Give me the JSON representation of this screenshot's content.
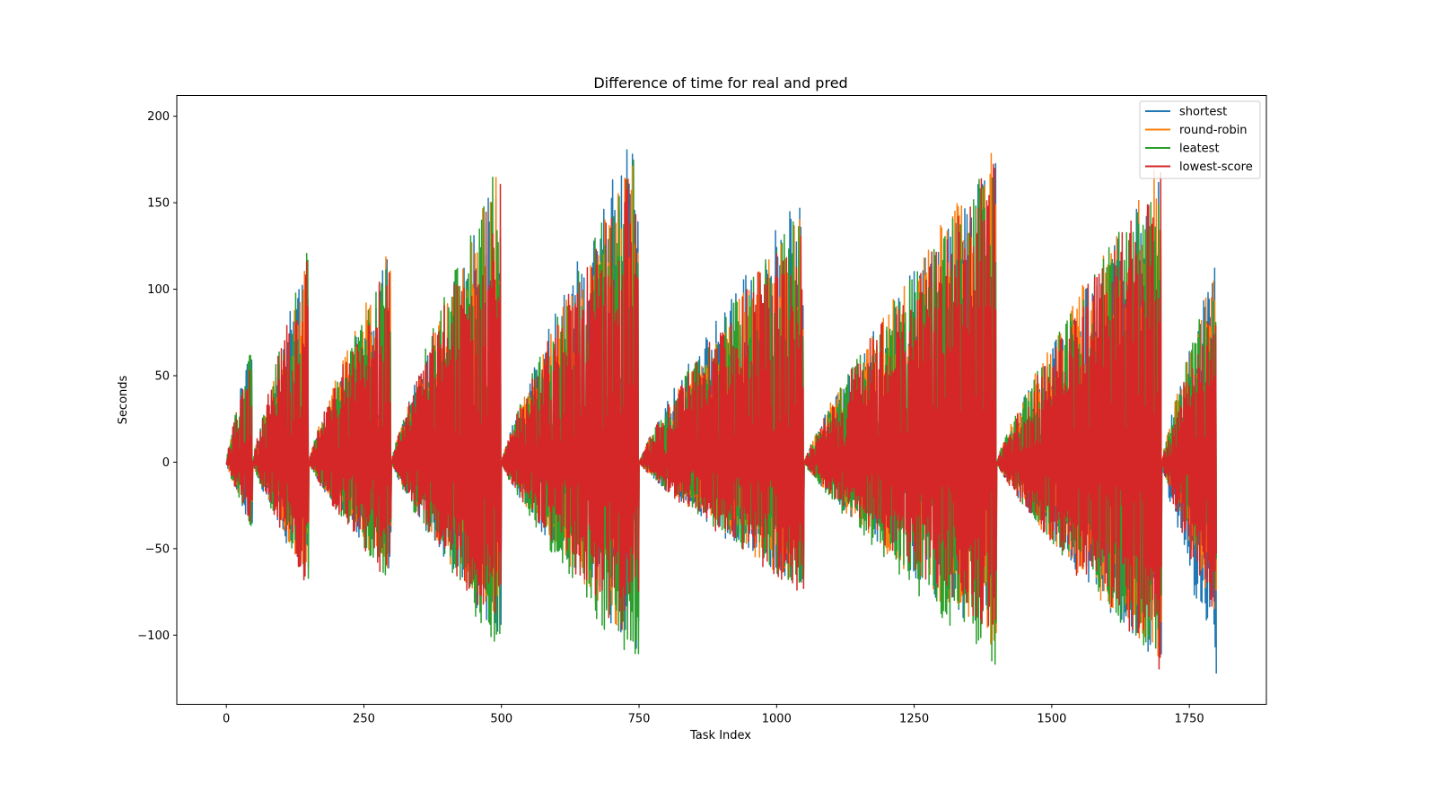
{
  "chart_data": {
    "type": "line",
    "title": "Difference of time for real and pred",
    "xlabel": "Task Index",
    "ylabel": "Seconds",
    "xlim": [
      -90,
      1890
    ],
    "ylim": [
      -140,
      212
    ],
    "x_ticks": [
      0,
      250,
      500,
      750,
      1000,
      1250,
      1500,
      1750
    ],
    "y_ticks": [
      -100,
      -50,
      0,
      50,
      100,
      150,
      200
    ],
    "legend_position": "top-right",
    "grid": false,
    "x_count": 1800,
    "segments": [
      {
        "start": 0,
        "end": 48,
        "pos_peak": [
          70,
          65,
          68,
          66
        ],
        "neg_peak": [
          -40,
          -38,
          -39,
          -37
        ]
      },
      {
        "start": 48,
        "end": 150,
        "pos_peak": [
          122,
          118,
          125,
          122
        ],
        "neg_peak": [
          -72,
          -68,
          -70,
          -73
        ]
      },
      {
        "start": 150,
        "end": 300,
        "pos_peak": [
          122,
          128,
          120,
          122
        ],
        "neg_peak": [
          -70,
          -68,
          -70,
          -72
        ]
      },
      {
        "start": 300,
        "end": 500,
        "pos_peak": [
          170,
          172,
          178,
          170
        ],
        "neg_peak": [
          -105,
          -100,
          -112,
          -103
        ]
      },
      {
        "start": 500,
        "end": 750,
        "pos_peak": [
          196,
          180,
          182,
          178
        ],
        "neg_peak": [
          -115,
          -110,
          -124,
          -112
        ]
      },
      {
        "start": 750,
        "end": 1050,
        "pos_peak": [
          158,
          145,
          150,
          145
        ],
        "neg_peak": [
          -76,
          -74,
          -76,
          -77
        ]
      },
      {
        "start": 1050,
        "end": 1400,
        "pos_peak": [
          180,
          185,
          178,
          178
        ],
        "neg_peak": [
          -108,
          -108,
          -121,
          -100
        ]
      },
      {
        "start": 1400,
        "end": 1700,
        "pos_peak": [
          172,
          180,
          172,
          170
        ],
        "neg_peak": [
          -120,
          -118,
          -120,
          -121
        ]
      },
      {
        "start": 1700,
        "end": 1800,
        "pos_peak": [
          120,
          118,
          115,
          100
        ],
        "neg_peak": [
          -124,
          -88,
          -80,
          -95
        ]
      }
    ],
    "series": [
      {
        "name": "shortest",
        "color": "#1f77b4"
      },
      {
        "name": "round-robin",
        "color": "#ff7f0e"
      },
      {
        "name": "leatest",
        "color": "#2ca02c"
      },
      {
        "name": "lowest-score",
        "color": "#d62728"
      }
    ]
  }
}
